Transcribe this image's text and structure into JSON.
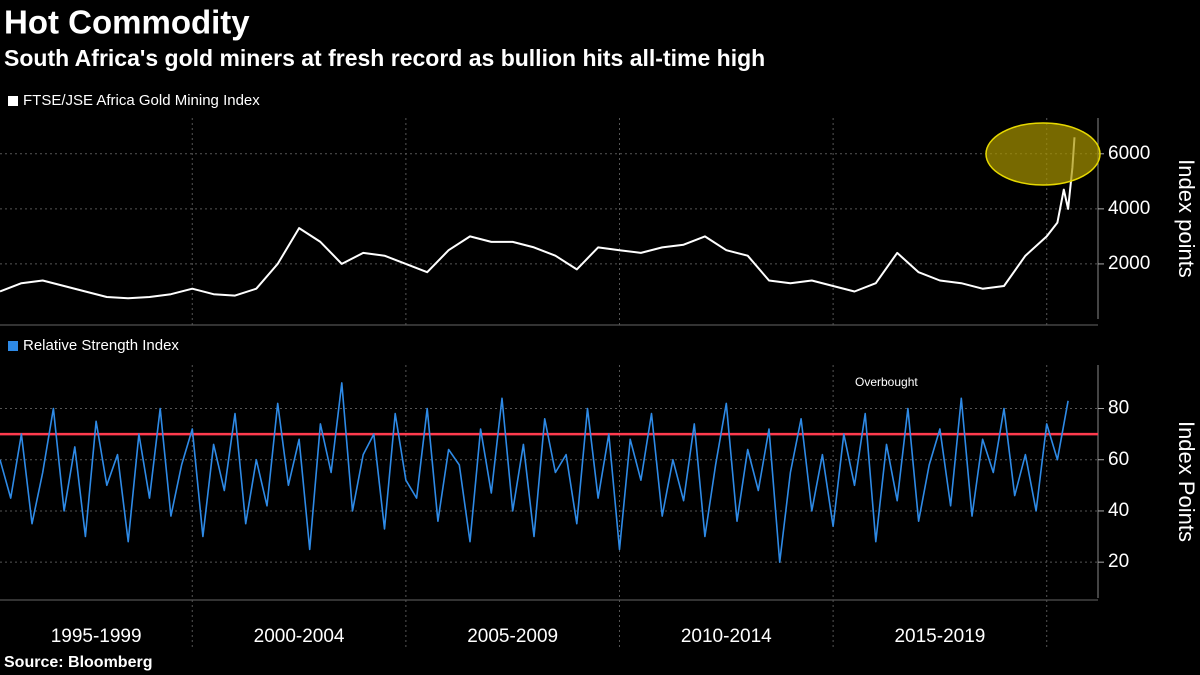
{
  "title": "Hot Commodity",
  "subtitle": "South Africa's gold miners at fresh record as bullion hits all-time high",
  "source": "Source: Bloomberg",
  "chart_data": [
    {
      "type": "line",
      "y_axis_label": "Index points",
      "x": [
        1995.5,
        1996,
        1996.5,
        1997,
        1997.5,
        1998,
        1998.5,
        1999,
        1999.5,
        2000,
        2000.5,
        2001,
        2001.5,
        2002,
        2002.5,
        2003,
        2003.5,
        2004,
        2004.5,
        2005,
        2005.5,
        2006,
        2006.5,
        2007,
        2007.5,
        2008,
        2008.5,
        2009,
        2009.5,
        2010,
        2010.5,
        2011,
        2011.5,
        2012,
        2012.5,
        2013,
        2013.5,
        2014,
        2014.5,
        2015,
        2015.5,
        2016,
        2016.5,
        2017,
        2017.5,
        2018,
        2018.5,
        2019,
        2019.5,
        2020,
        2020.25,
        2020.4,
        2020.5,
        2020.6,
        2020.65
      ],
      "series": [
        {
          "name": "FTSE/JSE Africa Gold Mining Index",
          "color": "#ffffff",
          "values": [
            1000,
            1300,
            1400,
            1200,
            1000,
            800,
            750,
            800,
            900,
            1100,
            900,
            850,
            1100,
            2000,
            3300,
            2800,
            2000,
            2400,
            2300,
            2000,
            1700,
            2500,
            3000,
            2800,
            2800,
            2600,
            2300,
            1800,
            2600,
            2500,
            2400,
            2600,
            2700,
            3000,
            2500,
            2300,
            1400,
            1300,
            1400,
            1200,
            1000,
            1300,
            2400,
            1700,
            1400,
            1300,
            1100,
            1200,
            2300,
            3000,
            3500,
            4700,
            4000,
            5500,
            6600
          ]
        }
      ],
      "xlim": [
        1995.5,
        2021.2
      ],
      "xticks": [
        2000,
        2005,
        2010,
        2015,
        2020
      ],
      "ylim": [
        0,
        7300
      ],
      "yticks": [
        2000,
        4000,
        6000
      ],
      "grid": true
    },
    {
      "type": "line",
      "y_axis_label": "Index Points",
      "x": [
        1995.5,
        1995.75,
        1996,
        1996.25,
        1996.5,
        1996.75,
        1997,
        1997.25,
        1997.5,
        1997.75,
        1998,
        1998.25,
        1998.5,
        1998.75,
        1999,
        1999.25,
        1999.5,
        1999.75,
        2000,
        2000.25,
        2000.5,
        2000.75,
        2001,
        2001.25,
        2001.5,
        2001.75,
        2002,
        2002.25,
        2002.5,
        2002.75,
        2003,
        2003.25,
        2003.5,
        2003.75,
        2004,
        2004.25,
        2004.5,
        2004.75,
        2005,
        2005.25,
        2005.5,
        2005.75,
        2006,
        2006.25,
        2006.5,
        2006.75,
        2007,
        2007.25,
        2007.5,
        2007.75,
        2008,
        2008.25,
        2008.5,
        2008.75,
        2009,
        2009.25,
        2009.5,
        2009.75,
        2010,
        2010.25,
        2010.5,
        2010.75,
        2011,
        2011.25,
        2011.5,
        2011.75,
        2012,
        2012.25,
        2012.5,
        2012.75,
        2013,
        2013.25,
        2013.5,
        2013.75,
        2014,
        2014.25,
        2014.5,
        2014.75,
        2015,
        2015.25,
        2015.5,
        2015.75,
        2016,
        2016.25,
        2016.5,
        2016.75,
        2017,
        2017.25,
        2017.5,
        2017.75,
        2018,
        2018.25,
        2018.5,
        2018.75,
        2019,
        2019.25,
        2019.5,
        2019.75,
        2020,
        2020.25,
        2020.5
      ],
      "series": [
        {
          "name": "Relative Strength Index",
          "color": "#2e8ae6",
          "values": [
            60,
            45,
            70,
            35,
            55,
            80,
            40,
            65,
            30,
            75,
            50,
            62,
            28,
            70,
            45,
            80,
            38,
            58,
            72,
            30,
            66,
            48,
            78,
            35,
            60,
            42,
            82,
            50,
            68,
            25,
            74,
            55,
            90,
            40,
            62,
            70,
            33,
            78,
            52,
            45,
            80,
            36,
            64,
            58,
            28,
            72,
            47,
            84,
            40,
            66,
            30,
            76,
            55,
            62,
            35,
            80,
            45,
            70,
            25,
            68,
            52,
            78,
            38,
            60,
            44,
            74,
            30,
            58,
            82,
            36,
            64,
            48,
            72,
            20,
            55,
            76,
            40,
            62,
            34,
            70,
            50,
            78,
            28,
            66,
            44,
            80,
            36,
            58,
            72,
            42,
            84,
            38,
            68,
            55,
            80,
            46,
            62,
            40,
            74,
            60,
            83
          ]
        }
      ],
      "threshold": 70,
      "threshold_color": "#ff3b4e",
      "annotation": "Overbought",
      "xlim": [
        1995.5,
        2021.2
      ],
      "xticks": [
        2000,
        2005,
        2010,
        2015,
        2020
      ],
      "x_labels": [
        "1995-1999",
        "2000-2004",
        "2005-2009",
        "2010-2014",
        "2015-2019"
      ],
      "ylim": [
        6,
        97
      ],
      "yticks": [
        20,
        40,
        60,
        80
      ],
      "grid": true
    }
  ]
}
